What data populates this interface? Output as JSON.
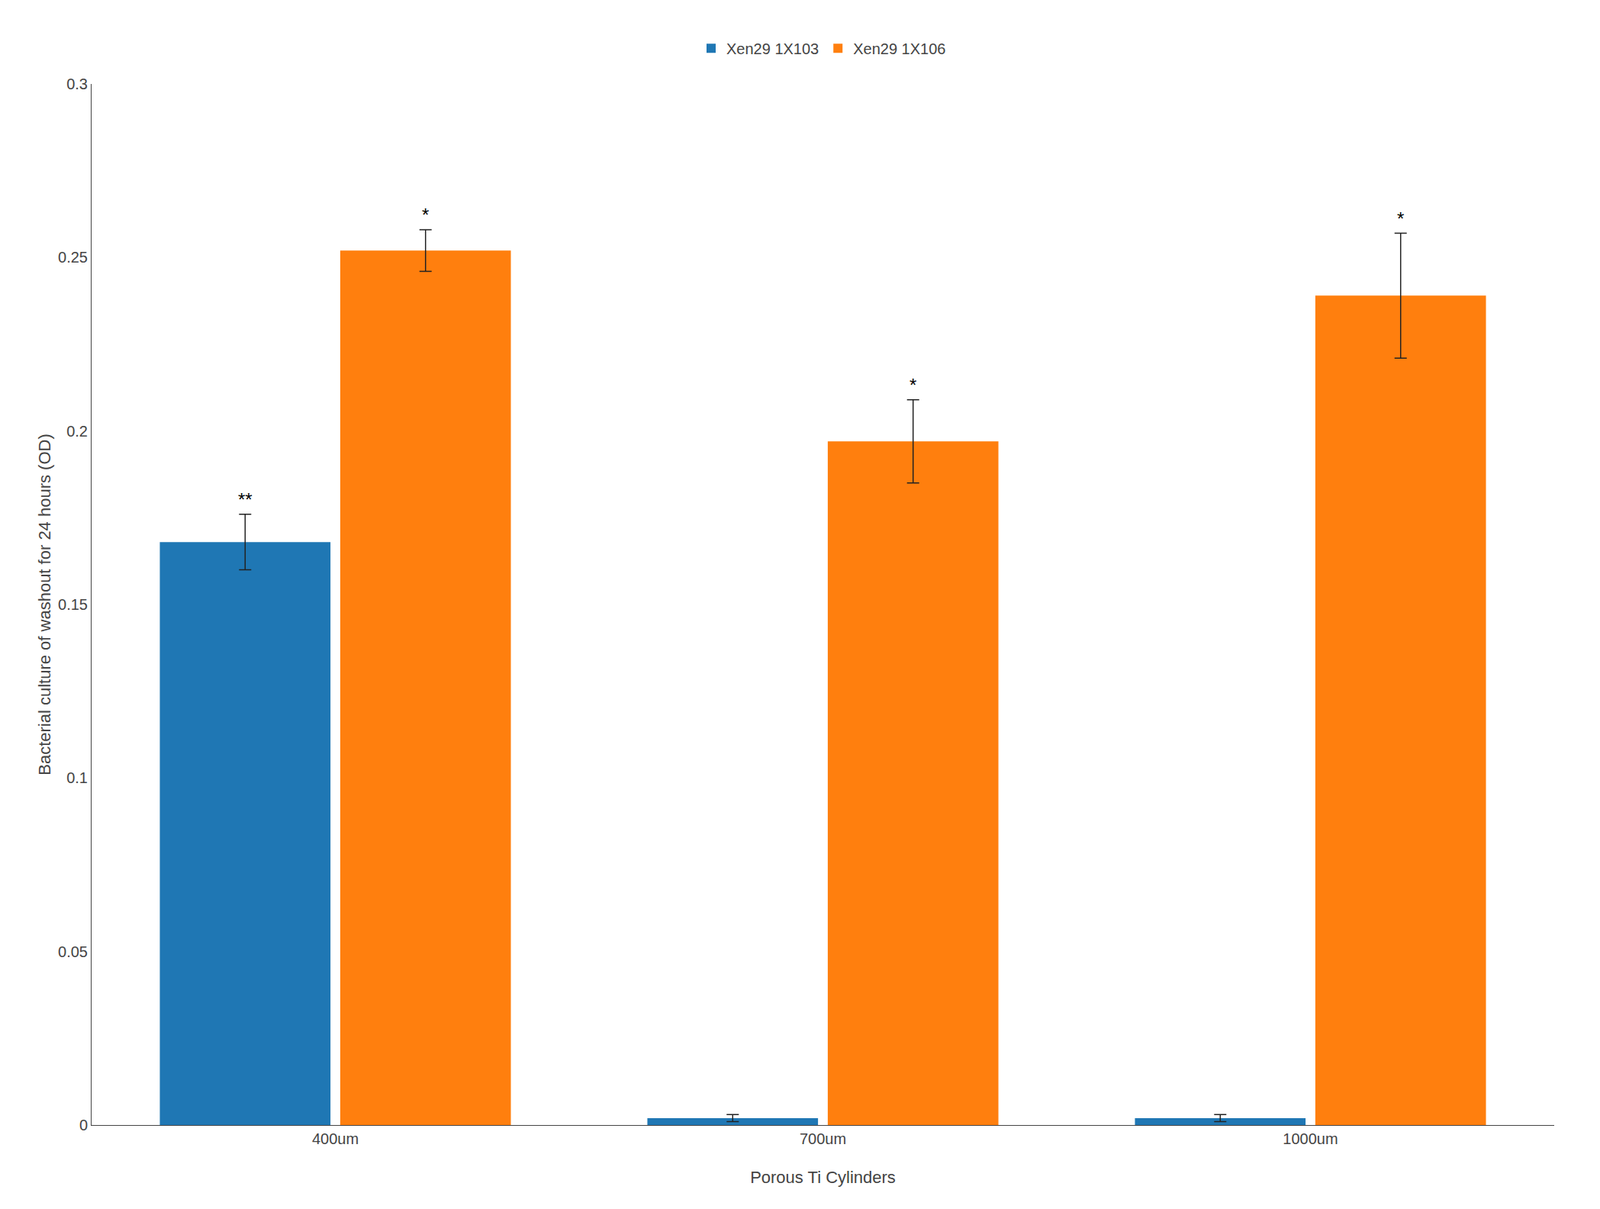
{
  "chart_data": {
    "type": "bar",
    "categories": [
      "400um",
      "700um",
      "1000um"
    ],
    "series": [
      {
        "name": "Xen29 1X103",
        "values": [
          0.168,
          0.002,
          0.002
        ],
        "errors": [
          0.008,
          0.001,
          0.001
        ],
        "annotations": [
          "**",
          null,
          null
        ]
      },
      {
        "name": "Xen29 1X106",
        "values": [
          0.252,
          0.197,
          0.239
        ],
        "errors": [
          0.006,
          0.012,
          0.018
        ],
        "annotations": [
          "*",
          "*",
          "*"
        ]
      }
    ],
    "xlabel": "Porous Ti Cylinders",
    "ylabel": "Bacterial culture of washout for 24 hours (OD)",
    "ylim": [
      0,
      0.3
    ],
    "yticks": [
      0,
      0.05,
      0.1,
      0.15,
      0.2,
      0.25,
      0.3
    ],
    "grid": false,
    "legend": "upper center"
  }
}
